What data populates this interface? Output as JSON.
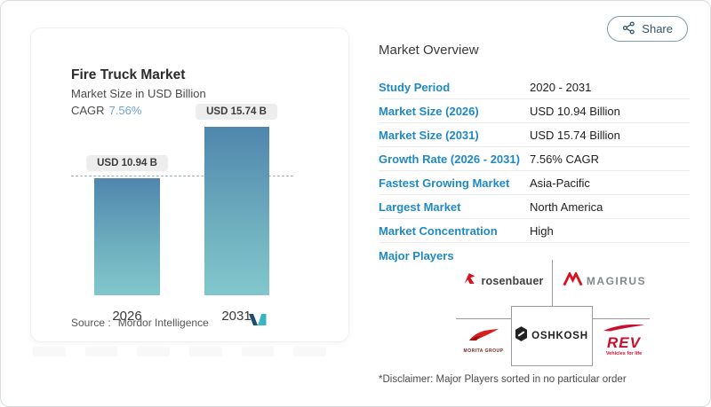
{
  "share_button": {
    "label": "Share"
  },
  "card": {
    "title": "Fire Truck Market",
    "subtitle": "Market Size in USD Billion",
    "cagr_label": "CAGR",
    "cagr_value": "7.56%",
    "source_label": "Source :",
    "source_name": "Mordor Intelligence"
  },
  "chart_data": {
    "type": "bar",
    "title": "Fire Truck Market",
    "subtitle": "Market Size in USD Billion",
    "unit": "USD Billion",
    "cagr": "7.56%",
    "categories": [
      "2026",
      "2031"
    ],
    "values": [
      10.94,
      15.74
    ],
    "value_labels": [
      "USD 10.94 B",
      "USD 15.74 B"
    ],
    "reference_line": {
      "value": 10.94,
      "style": "dashed"
    },
    "ylim": [
      0,
      15.74
    ],
    "grid": false,
    "legend": "none",
    "bar_gradient_top": "#4f86ad",
    "bar_gradient_bottom": "#82c7cc"
  },
  "overview": {
    "title": "Market Overview",
    "rows": [
      {
        "label": "Study Period",
        "value": "2020 - 2031"
      },
      {
        "label": "Market Size (2026)",
        "value": "USD 10.94 Billion"
      },
      {
        "label": "Market Size (2031)",
        "value": "USD 15.74 Billion"
      },
      {
        "label": "Growth Rate (2026 - 2031)",
        "value": "7.56% CAGR"
      },
      {
        "label": "Fastest Growing Market",
        "value": "Asia-Pacific"
      },
      {
        "label": "Largest Market",
        "value": "North America"
      },
      {
        "label": "Market Concentration",
        "value": "High"
      }
    ],
    "major_players_label": "Major Players",
    "players": {
      "rosenbauer": "rosenbauer",
      "magirus": "MAGIRUS",
      "morita": "MORITA GROUP",
      "oshkosh": "OSHKOSH",
      "rev": "REV",
      "rev_tagline": "Vehicles for life"
    },
    "disclaimer": "*Disclaimer: Major Players sorted in no particular order"
  },
  "colors": {
    "label_blue": "#2089c5",
    "cagr_blue": "#6fa3d3",
    "logo_red": "#d6121f",
    "share_text": "#33566b",
    "dashed_line": "#9fb0bc"
  }
}
